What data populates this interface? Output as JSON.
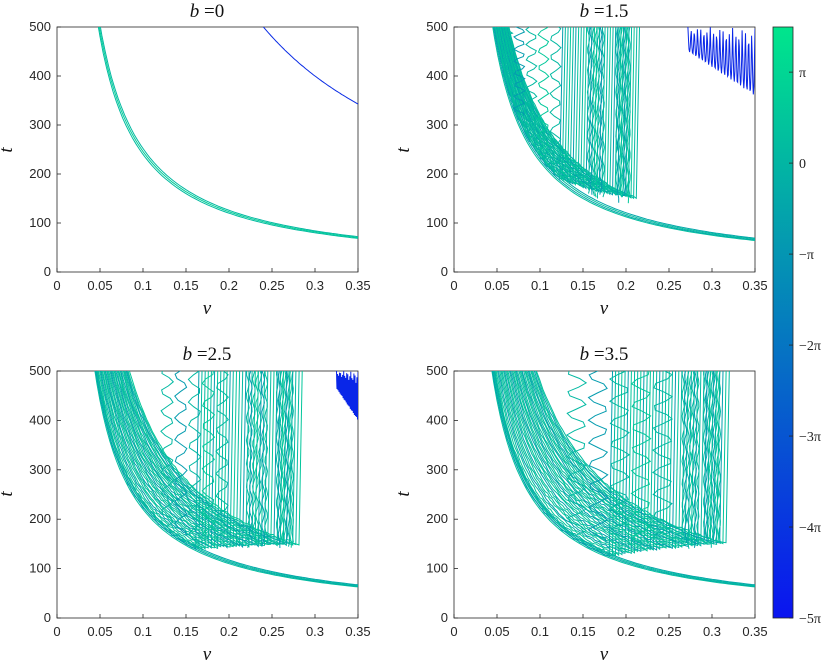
{
  "figure": {
    "colorbar": {
      "colors": [
        "#0a14f0",
        "#00e68c"
      ],
      "ticks": [
        {
          "value": 3.14159,
          "label": "π"
        },
        {
          "value": 0,
          "label": "0"
        },
        {
          "value": -3.14159,
          "label": "−π"
        },
        {
          "value": -6.28319,
          "label": "−2π"
        },
        {
          "value": -9.42478,
          "label": "−3π"
        },
        {
          "value": -12.56637,
          "label": "−4π"
        },
        {
          "value": -15.70796,
          "label": "−5π"
        }
      ],
      "range": [
        -15.70796,
        4.7
      ]
    }
  },
  "chart_data": [
    {
      "type": "contour",
      "title_var": "b",
      "title_eq": " =",
      "title_value": "0",
      "xlabel": "v",
      "ylabel": "t",
      "xlim": [
        0,
        0.35
      ],
      "ylim": [
        0,
        500
      ],
      "xticks": [
        "0",
        "0.05",
        "0.1",
        "0.15",
        "0.2",
        "0.25",
        "0.3",
        "0.35"
      ],
      "yticks": [
        "0",
        "100",
        "200",
        "300",
        "400",
        "500"
      ],
      "hyperbola_k": [
        24.0,
        24.6,
        25.2
      ],
      "phase_values": [
        0.5,
        2.5,
        0.2
      ],
      "extra": [
        {
          "kind": "hyperbola",
          "k": 120,
          "phase": -13.5
        }
      ]
    },
    {
      "type": "contour",
      "title_var": "b",
      "title_eq": " =",
      "title_value": "1.5",
      "xlabel": "v",
      "ylabel": "t",
      "xlim": [
        0,
        0.35
      ],
      "ylim": [
        0,
        500
      ],
      "xticks": [
        "0",
        "0.05",
        "0.1",
        "0.15",
        "0.2",
        "0.25",
        "0.3",
        "0.35"
      ],
      "yticks": [
        "0",
        "100",
        "200",
        "300",
        "400",
        "500"
      ],
      "hyperbola_k": [
        22.5,
        23.0,
        23.6,
        24.2
      ],
      "fan_count": 30,
      "fan_vmax": 0.205,
      "fan_k_range": [
        23.5,
        32
      ],
      "band_ranges": [
        [
          0.055,
          0.125
        ],
        [
          0.155,
          0.175
        ],
        [
          0.188,
          0.205
        ]
      ],
      "extra": [
        {
          "kind": "oscillation",
          "v_range": [
            0.272,
            0.35
          ],
          "t_range": [
            360,
            500
          ],
          "phase": -14
        }
      ]
    },
    {
      "type": "contour",
      "title_var": "b",
      "title_eq": " =",
      "title_value": "2.5",
      "xlabel": "v",
      "ylabel": "t",
      "xlim": [
        0,
        0.35
      ],
      "ylim": [
        0,
        500
      ],
      "xticks": [
        "0",
        "0.05",
        "0.1",
        "0.15",
        "0.2",
        "0.25",
        "0.3",
        "0.35"
      ],
      "yticks": [
        "0",
        "100",
        "200",
        "300",
        "400",
        "500"
      ],
      "hyperbola_k": [
        22.0,
        22.5,
        23.0,
        23.5
      ],
      "fan_count": 34,
      "fan_vmax": 0.275,
      "fan_k_range": [
        22.5,
        42
      ],
      "band_ranges": [
        [
          0.12,
          0.2
        ],
        [
          0.22,
          0.245
        ],
        [
          0.255,
          0.275
        ]
      ],
      "extra": [
        {
          "kind": "oscillation",
          "v_range": [
            0.325,
            0.35
          ],
          "t_range": [
            400,
            500
          ],
          "phase": -14
        }
      ]
    },
    {
      "type": "contour",
      "title_var": "b",
      "title_eq": " =",
      "title_value": "3.5",
      "xlabel": "v",
      "ylabel": "t",
      "xlim": [
        0,
        0.35
      ],
      "ylim": [
        0,
        500
      ],
      "xticks": [
        "0",
        "0.05",
        "0.1",
        "0.15",
        "0.2",
        "0.25",
        "0.3",
        "0.35"
      ],
      "yticks": [
        "0",
        "100",
        "200",
        "300",
        "400",
        "500"
      ],
      "hyperbola_k": [
        22.0,
        22.5,
        23.0,
        23.5
      ],
      "fan_count": 38,
      "fan_vmax": 0.31,
      "fan_k_range": [
        22.5,
        48
      ],
      "band_ranges": [
        [
          0.13,
          0.255
        ],
        [
          0.265,
          0.285
        ],
        [
          0.29,
          0.31
        ]
      ],
      "extra": []
    }
  ]
}
